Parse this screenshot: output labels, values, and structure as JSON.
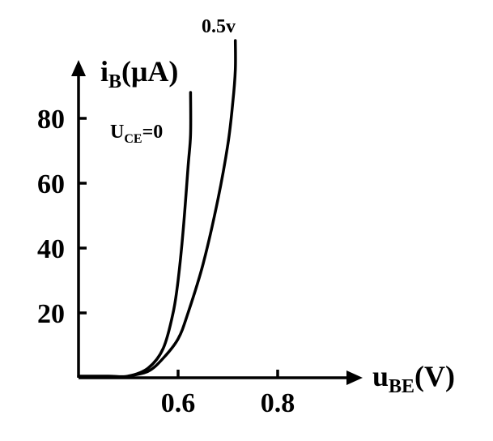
{
  "chart_data": {
    "type": "line",
    "grid": false,
    "xlabel": {
      "main": "u",
      "sub": "BE",
      "unit": "(V)"
    },
    "ylabel": {
      "main": "i",
      "sub": "B",
      "unit": "(μA)"
    },
    "xlim": [
      0.4,
      0.9
    ],
    "ylim": [
      0,
      100
    ],
    "x_ticks": [
      0.6,
      0.8
    ],
    "x_tick_labels": [
      "0.6",
      "0.8"
    ],
    "y_ticks": [
      20,
      40,
      60,
      80
    ],
    "y_tick_labels": [
      "20",
      "40",
      "60",
      "80"
    ],
    "series": [
      {
        "name": {
          "main": "U",
          "sub": "CE",
          "suffix": "=0"
        },
        "x": [
          0.4,
          0.46,
          0.5,
          0.54,
          0.57,
          0.59,
          0.6,
          0.61,
          0.62,
          0.625,
          0.625
        ],
        "y": [
          0.5,
          0.5,
          0.5,
          3,
          9,
          20,
          30,
          45,
          65,
          75,
          88
        ]
      },
      {
        "name": {
          "main": "0.5v",
          "sub": "",
          "suffix": ""
        },
        "x": [
          0.5,
          0.54,
          0.57,
          0.6,
          0.62,
          0.65,
          0.68,
          0.7,
          0.71,
          0.715,
          0.715
        ],
        "y": [
          0.5,
          2,
          6,
          12,
          20,
          35,
          55,
          72,
          85,
          95,
          104
        ]
      }
    ]
  }
}
